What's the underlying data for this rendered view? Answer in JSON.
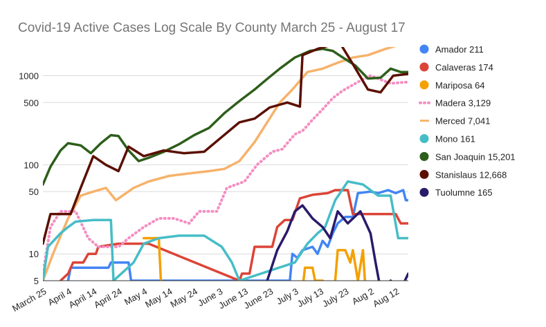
{
  "chart_data": {
    "type": "line",
    "title": "Covid-19 Active Cases Log Scale By County March 25 - August 17",
    "y_scale": "log",
    "ylim": [
      5,
      2100
    ],
    "y_ticks": [
      {
        "value": 5,
        "label": "5"
      },
      {
        "value": 10,
        "label": "10"
      },
      {
        "value": 50,
        "label": "50"
      },
      {
        "value": 100,
        "label": "100"
      },
      {
        "value": 500,
        "label": "500"
      },
      {
        "value": 1000,
        "label": "1000"
      }
    ],
    "x_range": [
      "2020-03-25",
      "2020-08-17"
    ],
    "x_ticks": [
      {
        "date": "2020-03-25",
        "label": "March 25"
      },
      {
        "date": "2020-04-04",
        "label": "April 4"
      },
      {
        "date": "2020-04-14",
        "label": "April 14"
      },
      {
        "date": "2020-04-24",
        "label": "April 24"
      },
      {
        "date": "2020-05-04",
        "label": "May 4"
      },
      {
        "date": "2020-05-14",
        "label": "May 14"
      },
      {
        "date": "2020-05-24",
        "label": "May 24"
      },
      {
        "date": "2020-06-03",
        "label": "June 3"
      },
      {
        "date": "2020-06-13",
        "label": "June 13"
      },
      {
        "date": "2020-06-23",
        "label": "June 23"
      },
      {
        "date": "2020-07-03",
        "label": "July 3"
      },
      {
        "date": "2020-07-13",
        "label": "July 13"
      },
      {
        "date": "2020-07-23",
        "label": "July 23"
      },
      {
        "date": "2020-08-02",
        "label": "Aug 2"
      },
      {
        "date": "2020-08-12",
        "label": "Aug 12"
      }
    ],
    "grid": true,
    "legend_position": "right",
    "series": [
      {
        "name": "Amador 211",
        "color": "#4285f4",
        "dash": false,
        "points": [
          [
            "2020-04-04",
            5
          ],
          [
            "2020-04-05",
            7
          ],
          [
            "2020-04-20",
            7
          ],
          [
            "2020-04-21",
            8
          ],
          [
            "2020-04-28",
            8
          ],
          [
            "2020-04-29",
            5
          ],
          [
            "2020-07-01",
            5
          ],
          [
            "2020-07-02",
            10
          ],
          [
            "2020-07-04",
            9
          ],
          [
            "2020-07-06",
            11
          ],
          [
            "2020-07-10",
            12
          ],
          [
            "2020-07-12",
            10
          ],
          [
            "2020-07-14",
            14
          ],
          [
            "2020-07-16",
            12
          ],
          [
            "2020-07-18",
            17
          ],
          [
            "2020-07-20",
            22
          ],
          [
            "2020-07-23",
            26
          ],
          [
            "2020-07-26",
            26
          ],
          [
            "2020-07-28",
            48
          ],
          [
            "2020-08-02",
            50
          ],
          [
            "2020-08-05",
            48
          ],
          [
            "2020-08-09",
            52
          ],
          [
            "2020-08-12",
            48
          ],
          [
            "2020-08-15",
            52
          ],
          [
            "2020-08-16",
            40
          ],
          [
            "2020-08-17",
            40
          ]
        ]
      },
      {
        "name": "Calaveras 174",
        "color": "#db4437",
        "dash": false,
        "points": [
          [
            "2020-04-01",
            5
          ],
          [
            "2020-04-04",
            6
          ],
          [
            "2020-04-06",
            8
          ],
          [
            "2020-04-10",
            8
          ],
          [
            "2020-04-12",
            10
          ],
          [
            "2020-04-15",
            10
          ],
          [
            "2020-04-16",
            12
          ],
          [
            "2020-04-24",
            13
          ],
          [
            "2020-05-06",
            13
          ],
          [
            "2020-06-11",
            5
          ],
          [
            "2020-06-12",
            6
          ],
          [
            "2020-06-15",
            6
          ],
          [
            "2020-06-17",
            12
          ],
          [
            "2020-06-24",
            12
          ],
          [
            "2020-06-26",
            20
          ],
          [
            "2020-06-29",
            24
          ],
          [
            "2020-07-02",
            24
          ],
          [
            "2020-07-05",
            42
          ],
          [
            "2020-07-10",
            46
          ],
          [
            "2020-07-16",
            48
          ],
          [
            "2020-07-19",
            52
          ],
          [
            "2020-07-24",
            52
          ],
          [
            "2020-07-26",
            28
          ],
          [
            "2020-08-12",
            28
          ],
          [
            "2020-08-14",
            22
          ],
          [
            "2020-08-17",
            22
          ]
        ]
      },
      {
        "name": "Mariposa 64",
        "color": "#f4a000",
        "dash": false,
        "points": [
          [
            "2020-05-04",
            15
          ],
          [
            "2020-05-10",
            15
          ],
          [
            "2020-05-11",
            4
          ],
          [
            "2020-07-06",
            4
          ],
          [
            "2020-07-07",
            7
          ],
          [
            "2020-07-10",
            7
          ],
          [
            "2020-07-11",
            5
          ],
          [
            "2020-07-14",
            5
          ],
          [
            "2020-07-15",
            3
          ],
          [
            "2020-07-18",
            3
          ],
          [
            "2020-07-19",
            5
          ],
          [
            "2020-07-20",
            11
          ],
          [
            "2020-07-23",
            11
          ],
          [
            "2020-07-25",
            8
          ],
          [
            "2020-07-26",
            11
          ],
          [
            "2020-07-28",
            5
          ],
          [
            "2020-07-30",
            11
          ],
          [
            "2020-07-31",
            4
          ]
        ]
      },
      {
        "name": "Madera 3,129",
        "color": "#f48ec2",
        "dash": true,
        "points": [
          [
            "2020-03-25",
            6
          ],
          [
            "2020-03-28",
            20
          ],
          [
            "2020-04-01",
            30
          ],
          [
            "2020-04-07",
            30
          ],
          [
            "2020-04-12",
            15
          ],
          [
            "2020-04-16",
            12
          ],
          [
            "2020-04-24",
            12
          ],
          [
            "2020-04-28",
            15
          ],
          [
            "2020-05-04",
            20
          ],
          [
            "2020-05-10",
            25
          ],
          [
            "2020-05-16",
            25
          ],
          [
            "2020-05-22",
            22
          ],
          [
            "2020-05-26",
            30
          ],
          [
            "2020-06-02",
            30
          ],
          [
            "2020-06-06",
            55
          ],
          [
            "2020-06-13",
            65
          ],
          [
            "2020-06-18",
            100
          ],
          [
            "2020-06-24",
            140
          ],
          [
            "2020-06-28",
            150
          ],
          [
            "2020-07-03",
            220
          ],
          [
            "2020-07-06",
            240
          ],
          [
            "2020-07-10",
            320
          ],
          [
            "2020-07-14",
            420
          ],
          [
            "2020-07-18",
            560
          ],
          [
            "2020-07-22",
            680
          ],
          [
            "2020-07-28",
            850
          ],
          [
            "2020-08-02",
            1000
          ],
          [
            "2020-08-10",
            820
          ],
          [
            "2020-08-17",
            850
          ]
        ]
      },
      {
        "name": "Merced 7,041",
        "color": "#f6b26b",
        "dash": false,
        "points": [
          [
            "2020-03-25",
            5
          ],
          [
            "2020-03-29",
            10
          ],
          [
            "2020-04-04",
            25
          ],
          [
            "2020-04-09",
            45
          ],
          [
            "2020-04-14",
            50
          ],
          [
            "2020-04-19",
            55
          ],
          [
            "2020-04-23",
            40
          ],
          [
            "2020-04-30",
            55
          ],
          [
            "2020-05-06",
            65
          ],
          [
            "2020-05-14",
            75
          ],
          [
            "2020-05-22",
            80
          ],
          [
            "2020-05-30",
            85
          ],
          [
            "2020-06-05",
            90
          ],
          [
            "2020-06-11",
            110
          ],
          [
            "2020-06-17",
            180
          ],
          [
            "2020-06-22",
            300
          ],
          [
            "2020-06-27",
            500
          ],
          [
            "2020-07-02",
            700
          ],
          [
            "2020-07-08",
            1100
          ],
          [
            "2020-07-14",
            1200
          ],
          [
            "2020-07-20",
            1400
          ],
          [
            "2020-07-26",
            1600
          ],
          [
            "2020-08-01",
            1700
          ],
          [
            "2020-08-08",
            2000
          ],
          [
            "2020-08-13",
            2200
          ],
          [
            "2020-08-17",
            2250
          ]
        ]
      },
      {
        "name": "Mono 161",
        "color": "#46bdc6",
        "dash": false,
        "points": [
          [
            "2020-03-25",
            5
          ],
          [
            "2020-03-27",
            12
          ],
          [
            "2020-04-01",
            17
          ],
          [
            "2020-04-04",
            20
          ],
          [
            "2020-04-07",
            23
          ],
          [
            "2020-04-14",
            24
          ],
          [
            "2020-04-21",
            24
          ],
          [
            "2020-04-22",
            5
          ],
          [
            "2020-04-30",
            8
          ],
          [
            "2020-05-04",
            13
          ],
          [
            "2020-05-10",
            15
          ],
          [
            "2020-05-18",
            16
          ],
          [
            "2020-05-28",
            16
          ],
          [
            "2020-06-04",
            12
          ],
          [
            "2020-06-08",
            8
          ],
          [
            "2020-06-11",
            5
          ],
          [
            "2020-07-03",
            8
          ],
          [
            "2020-07-08",
            13
          ],
          [
            "2020-07-12",
            17
          ],
          [
            "2020-07-15",
            20
          ],
          [
            "2020-07-19",
            40
          ],
          [
            "2020-07-24",
            65
          ],
          [
            "2020-07-30",
            60
          ],
          [
            "2020-08-05",
            45
          ],
          [
            "2020-08-10",
            45
          ],
          [
            "2020-08-13",
            15
          ],
          [
            "2020-08-17",
            15
          ]
        ]
      },
      {
        "name": "San Joaquin 15,201",
        "color": "#2d5e1a",
        "dash": false,
        "points": [
          [
            "2020-03-25",
            60
          ],
          [
            "2020-03-28",
            95
          ],
          [
            "2020-04-01",
            145
          ],
          [
            "2020-04-04",
            175
          ],
          [
            "2020-04-09",
            165
          ],
          [
            "2020-04-13",
            135
          ],
          [
            "2020-04-17",
            175
          ],
          [
            "2020-04-21",
            215
          ],
          [
            "2020-04-24",
            210
          ],
          [
            "2020-04-28",
            145
          ],
          [
            "2020-05-02",
            110
          ],
          [
            "2020-05-06",
            120
          ],
          [
            "2020-05-12",
            140
          ],
          [
            "2020-05-18",
            170
          ],
          [
            "2020-05-24",
            215
          ],
          [
            "2020-05-30",
            260
          ],
          [
            "2020-06-05",
            380
          ],
          [
            "2020-06-11",
            520
          ],
          [
            "2020-06-17",
            700
          ],
          [
            "2020-06-22",
            920
          ],
          [
            "2020-06-27",
            1200
          ],
          [
            "2020-07-03",
            1600
          ],
          [
            "2020-07-09",
            1900
          ],
          [
            "2020-07-14",
            2000
          ],
          [
            "2020-07-18",
            1900
          ],
          [
            "2020-07-22",
            1600
          ],
          [
            "2020-07-27",
            1300
          ],
          [
            "2020-08-01",
            930
          ],
          [
            "2020-08-06",
            950
          ],
          [
            "2020-08-10",
            1200
          ],
          [
            "2020-08-14",
            1100
          ],
          [
            "2020-08-17",
            1100
          ]
        ]
      },
      {
        "name": "Stanislaus 12,668",
        "color": "#5b0f00",
        "dash": false,
        "points": [
          [
            "2020-03-25",
            13
          ],
          [
            "2020-03-28",
            28
          ],
          [
            "2020-04-05",
            28
          ],
          [
            "2020-04-09",
            55
          ],
          [
            "2020-04-14",
            125
          ],
          [
            "2020-04-19",
            100
          ],
          [
            "2020-04-24",
            85
          ],
          [
            "2020-04-28",
            160
          ],
          [
            "2020-05-04",
            125
          ],
          [
            "2020-05-12",
            145
          ],
          [
            "2020-05-20",
            135
          ],
          [
            "2020-05-28",
            140
          ],
          [
            "2020-06-04",
            205
          ],
          [
            "2020-06-11",
            300
          ],
          [
            "2020-06-17",
            330
          ],
          [
            "2020-06-23",
            440
          ],
          [
            "2020-06-30",
            500
          ],
          [
            "2020-07-05",
            450
          ],
          [
            "2020-07-06",
            1700
          ],
          [
            "2020-07-12",
            2000
          ],
          [
            "2020-07-17",
            2200
          ],
          [
            "2020-07-21",
            2300
          ],
          [
            "2020-07-26",
            1350
          ],
          [
            "2020-08-01",
            700
          ],
          [
            "2020-08-06",
            650
          ],
          [
            "2020-08-11",
            1000
          ],
          [
            "2020-08-17",
            1050
          ]
        ]
      },
      {
        "name": "Tuolumne 165",
        "color": "#2a1a6b",
        "dash": false,
        "points": [
          [
            "2020-06-22",
            5
          ],
          [
            "2020-06-26",
            11
          ],
          [
            "2020-06-30",
            18
          ],
          [
            "2020-07-03",
            30
          ],
          [
            "2020-07-06",
            35
          ],
          [
            "2020-07-10",
            25
          ],
          [
            "2020-07-14",
            20
          ],
          [
            "2020-07-17",
            15
          ],
          [
            "2020-07-20",
            30
          ],
          [
            "2020-07-24",
            22
          ],
          [
            "2020-07-29",
            30
          ],
          [
            "2020-08-02",
            17
          ],
          [
            "2020-08-04",
            8
          ],
          [
            "2020-08-06",
            4
          ],
          [
            "2020-08-10",
            5
          ],
          [
            "2020-08-14",
            4
          ],
          [
            "2020-08-17",
            6
          ]
        ]
      }
    ]
  }
}
